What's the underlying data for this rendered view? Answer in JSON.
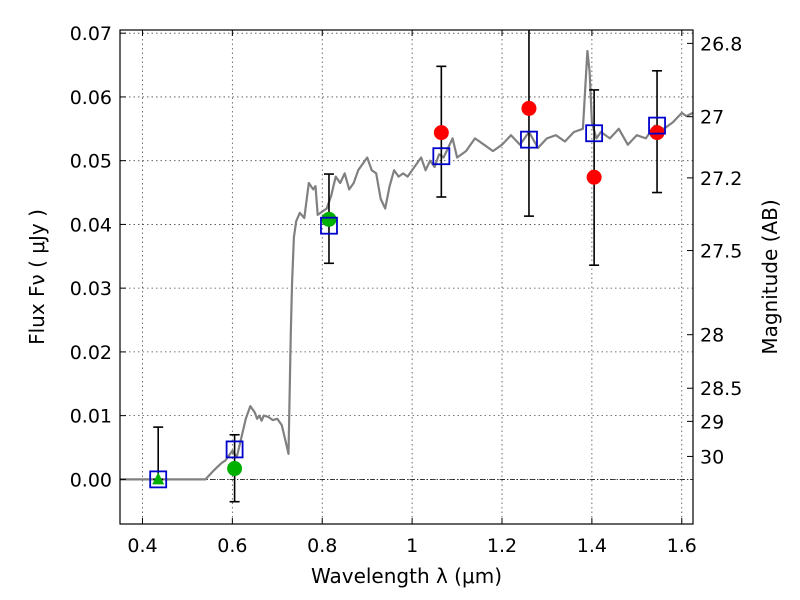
{
  "chart_data": {
    "type": "scatter",
    "xlabel": "Wavelength  λ (μm)",
    "ylabel": "Flux  Fν  ( μJy )",
    "y2label": "Magnitude (AB)",
    "xlim": [
      0.35,
      1.625
    ],
    "ylim": [
      -0.007,
      0.0705
    ],
    "x_ticks": [
      0.4,
      0.6,
      0.8,
      1.0,
      1.2,
      1.4,
      1.6
    ],
    "x_tick_labels": [
      "0.4",
      "0.6",
      "0.8",
      "1",
      "1.2",
      "1.4",
      "1.6"
    ],
    "y_ticks": [
      0.0,
      0.01,
      0.02,
      0.03,
      0.04,
      0.05,
      0.06,
      0.07
    ],
    "y_tick_labels": [
      "0.00",
      "0.01",
      "0.02",
      "0.03",
      "0.04",
      "0.05",
      "0.06",
      "0.07"
    ],
    "y2_ticks": [
      {
        "label": "26.8",
        "flux": 0.0684
      },
      {
        "label": "27",
        "flux": 0.0569
      },
      {
        "label": "27.2",
        "flux": 0.0473
      },
      {
        "label": "27.5",
        "flux": 0.0359
      },
      {
        "label": "28",
        "flux": 0.0227
      },
      {
        "label": "28.5",
        "flux": 0.0143
      },
      {
        "label": "29",
        "flux": 0.0091
      },
      {
        "label": "30",
        "flux": 0.0036
      }
    ],
    "grid": true,
    "zero_line": true,
    "colors": {
      "model": "#808080",
      "observed": "#ff0000",
      "detected_optical": "#00b000",
      "model_photometry": "#0000cc",
      "error_bar": "#000000"
    },
    "series": [
      {
        "kind": "line",
        "x": [
          0.35,
          0.4,
          0.45,
          0.5,
          0.54,
          0.56,
          0.575,
          0.585,
          0.595,
          0.6,
          0.61,
          0.62,
          0.63,
          0.64,
          0.65,
          0.655,
          0.66,
          0.665,
          0.67,
          0.68,
          0.69,
          0.7,
          0.71,
          0.72,
          0.725,
          0.73,
          0.733,
          0.737,
          0.742,
          0.75,
          0.76,
          0.77,
          0.78,
          0.785,
          0.79,
          0.8,
          0.81,
          0.82,
          0.83,
          0.84,
          0.85,
          0.86,
          0.87,
          0.88,
          0.89,
          0.9,
          0.91,
          0.92,
          0.93,
          0.94,
          0.95,
          0.96,
          0.97,
          0.98,
          0.99,
          1.0,
          1.01,
          1.02,
          1.03,
          1.04,
          1.05,
          1.06,
          1.07,
          1.08,
          1.09,
          1.1,
          1.12,
          1.14,
          1.16,
          1.18,
          1.2,
          1.22,
          1.24,
          1.26,
          1.28,
          1.3,
          1.32,
          1.34,
          1.36,
          1.38,
          1.39,
          1.395,
          1.4,
          1.41,
          1.42,
          1.44,
          1.46,
          1.48,
          1.5,
          1.52,
          1.54,
          1.56,
          1.58,
          1.6,
          1.61,
          1.625
        ],
        "y": [
          0.0,
          0.0,
          0.0,
          0.0,
          0.0,
          0.0015,
          0.0025,
          0.003,
          0.004,
          0.0045,
          0.0035,
          0.0065,
          0.0095,
          0.0115,
          0.0105,
          0.0095,
          0.01,
          0.0092,
          0.01,
          0.0098,
          0.0093,
          0.0095,
          0.0085,
          0.0055,
          0.004,
          0.023,
          0.031,
          0.038,
          0.0405,
          0.0418,
          0.041,
          0.0465,
          0.0455,
          0.046,
          0.0415,
          0.042,
          0.0425,
          0.0445,
          0.0475,
          0.0465,
          0.048,
          0.0455,
          0.0465,
          0.0485,
          0.0495,
          0.0505,
          0.0485,
          0.048,
          0.044,
          0.0425,
          0.046,
          0.0485,
          0.0475,
          0.048,
          0.0475,
          0.0485,
          0.0495,
          0.0505,
          0.0485,
          0.05,
          0.049,
          0.051,
          0.0505,
          0.052,
          0.0535,
          0.0505,
          0.0515,
          0.0535,
          0.0525,
          0.0515,
          0.0525,
          0.054,
          0.0525,
          0.0545,
          0.052,
          0.0535,
          0.054,
          0.053,
          0.0545,
          0.055,
          0.0672,
          0.064,
          0.056,
          0.0535,
          0.0545,
          0.0535,
          0.055,
          0.0525,
          0.054,
          0.0535,
          0.0555,
          0.055,
          0.056,
          0.0575,
          0.057,
          0.0575
        ]
      },
      {
        "kind": "observed",
        "x": [
          1.065,
          1.26,
          1.405,
          1.545
        ],
        "y": [
          0.0544,
          0.0582,
          0.0474,
          0.0544
        ],
        "err_low": [
          0.0101,
          0.0169,
          0.0138,
          0.0094
        ],
        "err_high": [
          0.0104,
          0.0128,
          0.0137,
          0.0097
        ]
      },
      {
        "kind": "detected_optical",
        "x": [
          0.605,
          0.815
        ],
        "y": [
          0.0017,
          0.0408
        ],
        "err_low": [
          0.0052,
          0.0069
        ],
        "err_high": [
          0.0053,
          0.0071
        ]
      },
      {
        "kind": "upper_limit",
        "x": [
          0.435
        ],
        "y": [
          0.0
        ],
        "err_low": [
          0.0
        ],
        "err_high": [
          0.0082
        ]
      },
      {
        "kind": "model_photometry",
        "x": [
          0.435,
          0.605,
          0.815,
          1.065,
          1.26,
          1.405,
          1.545
        ],
        "y": [
          0.0,
          0.0047,
          0.0398,
          0.0507,
          0.0533,
          0.0543,
          0.0555
        ]
      }
    ]
  }
}
